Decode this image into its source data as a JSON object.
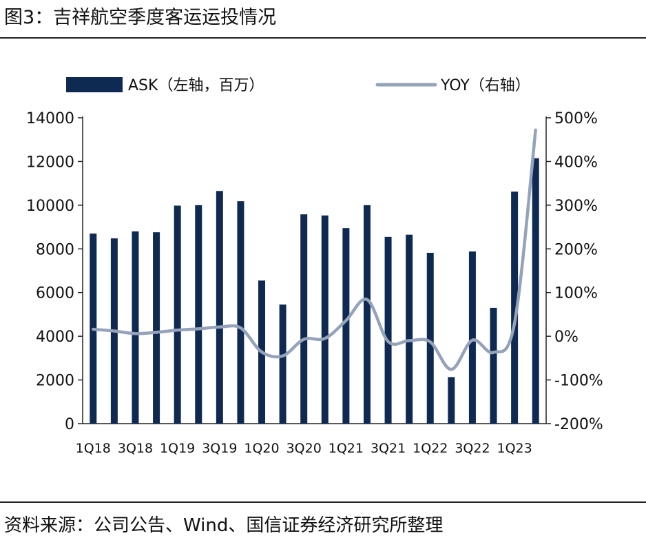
{
  "figure": {
    "title": "图3：吉祥航空季度客运运投情况",
    "source": "资料来源：公司公告、Wind、国信证券经济研究所整理"
  },
  "colors": {
    "bar": "#0f2a52",
    "line": "#94a3ba",
    "axis": "#222222"
  },
  "chart_data": {
    "type": "bar",
    "title": "",
    "categories": [
      "1Q18",
      "2Q18",
      "3Q18",
      "4Q18",
      "1Q19",
      "2Q19",
      "3Q19",
      "4Q19",
      "1Q20",
      "2Q20",
      "3Q20",
      "4Q20",
      "1Q21",
      "2Q21",
      "3Q21",
      "4Q21",
      "1Q22",
      "2Q22",
      "3Q22",
      "4Q22",
      "1Q23",
      "2Q23"
    ],
    "x_tick_labels": [
      "1Q18",
      "3Q18",
      "1Q19",
      "3Q19",
      "1Q20",
      "3Q20",
      "1Q21",
      "3Q21",
      "1Q22",
      "3Q22",
      "1Q23"
    ],
    "series": [
      {
        "name": "ASK（左轴，百万）",
        "type": "bar",
        "axis": "left",
        "values": [
          8700,
          8480,
          8800,
          8760,
          9980,
          10000,
          10650,
          10180,
          6550,
          5450,
          9580,
          9530,
          8950,
          10000,
          8550,
          8650,
          7820,
          2130,
          7880,
          5300,
          10620,
          12150
        ]
      },
      {
        "name": "YOY（右轴）",
        "type": "line",
        "axis": "right",
        "values": [
          0.16,
          0.12,
          0.06,
          0.09,
          0.14,
          0.17,
          0.21,
          0.19,
          -0.36,
          -0.45,
          -0.07,
          -0.05,
          0.36,
          0.84,
          -0.12,
          -0.1,
          -0.13,
          -0.76,
          -0.09,
          -0.37,
          0.3,
          4.72
        ]
      }
    ],
    "left_axis": {
      "ylim": [
        0,
        14000
      ],
      "ticks": [
        "0",
        "2000",
        "4000",
        "6000",
        "8000",
        "10000",
        "12000",
        "14000"
      ]
    },
    "right_axis": {
      "ylim": [
        -2.0,
        5.0
      ],
      "ticks": [
        "-200%",
        "-100%",
        "0%",
        "100%",
        "200%",
        "300%",
        "400%",
        "500%"
      ]
    },
    "legend": {
      "position": "top",
      "items": [
        "ASK（左轴，百万）",
        "YOY（右轴）"
      ]
    }
  }
}
